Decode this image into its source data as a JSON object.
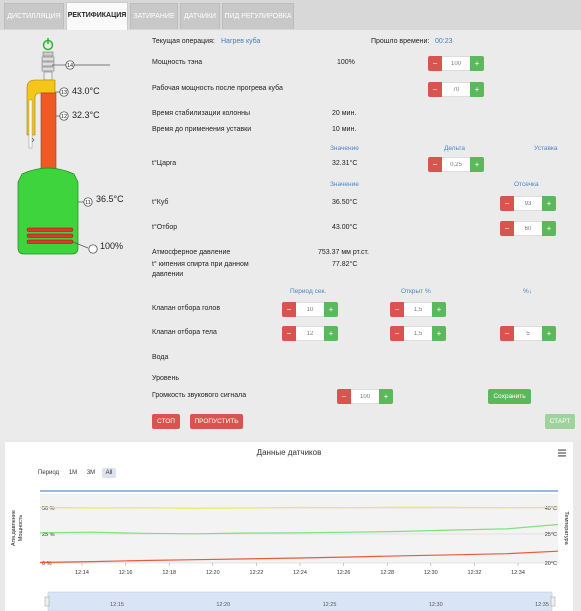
{
  "tabs": [
    {
      "label": "ДИСТИЛЛЯЦИЯ"
    },
    {
      "label": "РЕКТИФИКАЦИЯ"
    },
    {
      "label": "ЗАТИРАНИЕ"
    },
    {
      "label": "ДАТЧИКИ"
    },
    {
      "label": "ПИД РЕГУЛИРОВКА"
    }
  ],
  "diagram": {
    "sensor_ids": [
      "14",
      "13",
      "12",
      "11"
    ],
    "temps": {
      "top": "43.0°C",
      "mid": "32.3°C",
      "cube": "36.5°C"
    },
    "heater_power": "100%"
  },
  "status": {
    "operation_label": "Текущая операция:",
    "operation_value": "Нагрев куба",
    "elapsed_label": "Прошло времени:",
    "elapsed_value": "00:23"
  },
  "params": {
    "heater_power_label": "Мощность тэна",
    "heater_power_value": "100%",
    "heater_power_input": "100",
    "work_power_label": "Рабочая мощность после прогрева куба",
    "work_power_input": "70",
    "stab_label": "Время стабилизации колонны",
    "stab_value": "20 мин.",
    "setpoint_label": "Время до применения уставки",
    "setpoint_value": "10 мин."
  },
  "tsarga": {
    "h_value": "Значение",
    "h_delta": "Дельта",
    "h_setpoint": "Уставка",
    "label": "t°Царга",
    "value": "32.31°C",
    "delta_input": "0,25"
  },
  "cube": {
    "h_value": "Значение",
    "h_cutoff": "Отсечка",
    "cube_label": "t°Куб",
    "cube_value": "36.50°C",
    "cube_input": "93",
    "otbor_label": "t°Отбор",
    "otbor_value": "43.00°C",
    "otbor_input": "60"
  },
  "pressure": {
    "label": "Атмосферное давление",
    "value": "753.37 мм рт.ст."
  },
  "boiling": {
    "label_line1": "t° кипения спирта при данном",
    "label_line2": "давлении",
    "value": "77.82°C"
  },
  "valves": {
    "h_period": "Период сек.",
    "h_open": "Открыт %",
    "h_pct": "%↓",
    "heads_label": "Клапан отбора голов",
    "heads_period": "10",
    "heads_open": "1,5",
    "body_label": "Клапан отбора тела",
    "body_period": "12",
    "body_open": "1,5",
    "body_pct": "5"
  },
  "misc": {
    "water": "Вода",
    "level": "Уровень",
    "volume_label": "Громкость звукового сигнала",
    "volume_input": "100",
    "save": "Сохранить"
  },
  "buttons": {
    "stop": "СТОП",
    "skip": "ПРОПУСТИТЬ",
    "start": "СТАРТ"
  },
  "stepper_symbols": {
    "minus": "−",
    "plus": "+"
  },
  "chart_data": {
    "type": "line",
    "title": "Данные датчиков",
    "period_label": "Период",
    "period_buttons": [
      "1M",
      "3M",
      "All"
    ],
    "period_selected": "All",
    "left_axis_labels": [
      "Атм.давление",
      "Мощность"
    ],
    "right_axis_label": "Температура",
    "left_ticks": [
      "50 %",
      "25 %",
      "0 %"
    ],
    "right_ticks": [
      "40°C",
      "25°C",
      "20°C"
    ],
    "x": [
      "12:14",
      "12:16",
      "12:18",
      "12:20",
      "12:22",
      "12:24",
      "12:26",
      "12:28",
      "12:30",
      "12:32",
      "12:34"
    ],
    "navigator_ticks": [
      "12:15",
      "12:20",
      "12:25",
      "12:30",
      "12:35"
    ],
    "series": [
      {
        "color": "#e2ee5a",
        "values": [
          40.2,
          40.0,
          40.1,
          39.9,
          40.0,
          40.2,
          40.1,
          40.3,
          40.2,
          40.1,
          40.2
        ]
      },
      {
        "color": "#7fe07f",
        "values": [
          31.0,
          31.2,
          30.8,
          30.6,
          30.9,
          31.0,
          31.2,
          31.5,
          32.0,
          32.4,
          34.0
        ]
      },
      {
        "color": "#e85a3a",
        "values": [
          20.2,
          20.5,
          20.9,
          21.2,
          21.5,
          21.8,
          22.2,
          22.6,
          23.0,
          23.4,
          24.3
        ]
      },
      {
        "color": "#5b8fd6",
        "values": [
          99,
          99,
          99,
          99,
          99,
          99,
          99,
          99,
          99,
          99,
          99
        ]
      }
    ]
  },
  "colors": {
    "column": "#ee5a24",
    "cube": "#3ed43e",
    "dephleg": "#f5c518",
    "heater": "#d93b2b",
    "power_icon": "#2cb52c"
  }
}
